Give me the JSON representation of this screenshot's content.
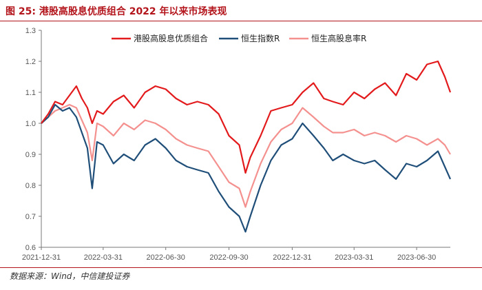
{
  "title": "图 25: 港股高股息优质组合  2022 年以来市场表现",
  "source": "数据来源：Wind，中信建投证券",
  "chart_data": {
    "type": "line",
    "title": "图 25: 港股高股息优质组合  2022 年以来市场表现",
    "xlabel": "",
    "ylabel": "",
    "ylim": [
      0.6,
      1.3
    ],
    "yticks": [
      0.6,
      0.7,
      0.8,
      0.9,
      1.0,
      1.1,
      1.2,
      1.3
    ],
    "xticks": [
      "2021-12-31",
      "2022-03-31",
      "2022-06-30",
      "2022-09-30",
      "2022-12-31",
      "2023-03-31",
      "2023-06-30"
    ],
    "xrange": [
      "2021-12-31",
      "2023-08-18"
    ],
    "grid": false,
    "legend_position": "top",
    "series": [
      {
        "name": "港股高股息优质组合",
        "color": "#e31a1c",
        "x": [
          "2021-12-31",
          "2022-01-10",
          "2022-01-20",
          "2022-01-31",
          "2022-02-10",
          "2022-02-20",
          "2022-02-28",
          "2022-03-08",
          "2022-03-15",
          "2022-03-22",
          "2022-03-31",
          "2022-04-15",
          "2022-04-30",
          "2022-05-15",
          "2022-05-31",
          "2022-06-15",
          "2022-06-30",
          "2022-07-15",
          "2022-07-31",
          "2022-08-15",
          "2022-08-31",
          "2022-09-15",
          "2022-09-30",
          "2022-10-15",
          "2022-10-24",
          "2022-10-31",
          "2022-11-15",
          "2022-11-30",
          "2022-12-15",
          "2022-12-31",
          "2023-01-15",
          "2023-01-31",
          "2023-02-15",
          "2023-02-28",
          "2023-03-15",
          "2023-03-31",
          "2023-04-15",
          "2023-04-30",
          "2023-05-15",
          "2023-05-31",
          "2023-06-15",
          "2023-06-30",
          "2023-07-15",
          "2023-07-31",
          "2023-08-10",
          "2023-08-18"
        ],
        "y": [
          1.0,
          1.03,
          1.07,
          1.06,
          1.09,
          1.12,
          1.08,
          1.05,
          1.0,
          1.04,
          1.03,
          1.07,
          1.09,
          1.05,
          1.1,
          1.12,
          1.11,
          1.08,
          1.06,
          1.07,
          1.06,
          1.03,
          0.96,
          0.93,
          0.84,
          0.89,
          0.96,
          1.04,
          1.05,
          1.06,
          1.1,
          1.13,
          1.08,
          1.07,
          1.06,
          1.1,
          1.08,
          1.11,
          1.13,
          1.09,
          1.16,
          1.14,
          1.19,
          1.2,
          1.15,
          1.1
        ]
      },
      {
        "name": "恒生指数R",
        "color": "#1f4e79",
        "x": [
          "2021-12-31",
          "2022-01-10",
          "2022-01-20",
          "2022-01-31",
          "2022-02-10",
          "2022-02-20",
          "2022-02-28",
          "2022-03-08",
          "2022-03-15",
          "2022-03-22",
          "2022-03-31",
          "2022-04-15",
          "2022-04-30",
          "2022-05-15",
          "2022-05-31",
          "2022-06-15",
          "2022-06-30",
          "2022-07-15",
          "2022-07-31",
          "2022-08-15",
          "2022-08-31",
          "2022-09-15",
          "2022-09-30",
          "2022-10-15",
          "2022-10-24",
          "2022-10-31",
          "2022-11-15",
          "2022-11-30",
          "2022-12-15",
          "2022-12-31",
          "2023-01-15",
          "2023-01-31",
          "2023-02-15",
          "2023-02-28",
          "2023-03-15",
          "2023-03-31",
          "2023-04-15",
          "2023-04-30",
          "2023-05-15",
          "2023-05-31",
          "2023-06-15",
          "2023-06-30",
          "2023-07-15",
          "2023-07-31",
          "2023-08-10",
          "2023-08-18"
        ],
        "y": [
          1.0,
          1.02,
          1.06,
          1.04,
          1.05,
          1.02,
          0.97,
          0.92,
          0.79,
          0.94,
          0.93,
          0.87,
          0.9,
          0.88,
          0.93,
          0.95,
          0.92,
          0.88,
          0.86,
          0.85,
          0.84,
          0.78,
          0.73,
          0.7,
          0.65,
          0.7,
          0.8,
          0.88,
          0.93,
          0.95,
          1.0,
          0.96,
          0.92,
          0.88,
          0.9,
          0.88,
          0.87,
          0.88,
          0.85,
          0.82,
          0.87,
          0.86,
          0.88,
          0.91,
          0.86,
          0.82
        ]
      },
      {
        "name": "恒生高股息率R",
        "color": "#f4918f",
        "x": [
          "2021-12-31",
          "2022-01-10",
          "2022-01-20",
          "2022-01-31",
          "2022-02-10",
          "2022-02-20",
          "2022-02-28",
          "2022-03-08",
          "2022-03-15",
          "2022-03-22",
          "2022-03-31",
          "2022-04-15",
          "2022-04-30",
          "2022-05-15",
          "2022-05-31",
          "2022-06-15",
          "2022-06-30",
          "2022-07-15",
          "2022-07-31",
          "2022-08-15",
          "2022-08-31",
          "2022-09-15",
          "2022-09-30",
          "2022-10-15",
          "2022-10-24",
          "2022-10-31",
          "2022-11-15",
          "2022-11-30",
          "2022-12-15",
          "2022-12-31",
          "2023-01-15",
          "2023-01-31",
          "2023-02-15",
          "2023-02-28",
          "2023-03-15",
          "2023-03-31",
          "2023-04-15",
          "2023-04-30",
          "2023-05-15",
          "2023-05-31",
          "2023-06-15",
          "2023-06-30",
          "2023-07-15",
          "2023-07-31",
          "2023-08-10",
          "2023-08-18"
        ],
        "y": [
          1.0,
          1.02,
          1.04,
          1.05,
          1.06,
          1.05,
          1.01,
          0.97,
          0.88,
          1.0,
          0.99,
          0.96,
          1.0,
          0.98,
          1.01,
          1.0,
          0.98,
          0.95,
          0.93,
          0.92,
          0.91,
          0.86,
          0.81,
          0.79,
          0.73,
          0.78,
          0.87,
          0.94,
          0.98,
          1.0,
          1.05,
          1.02,
          0.99,
          0.97,
          0.97,
          0.98,
          0.96,
          0.97,
          0.96,
          0.94,
          0.96,
          0.95,
          0.93,
          0.95,
          0.93,
          0.9
        ]
      }
    ]
  }
}
